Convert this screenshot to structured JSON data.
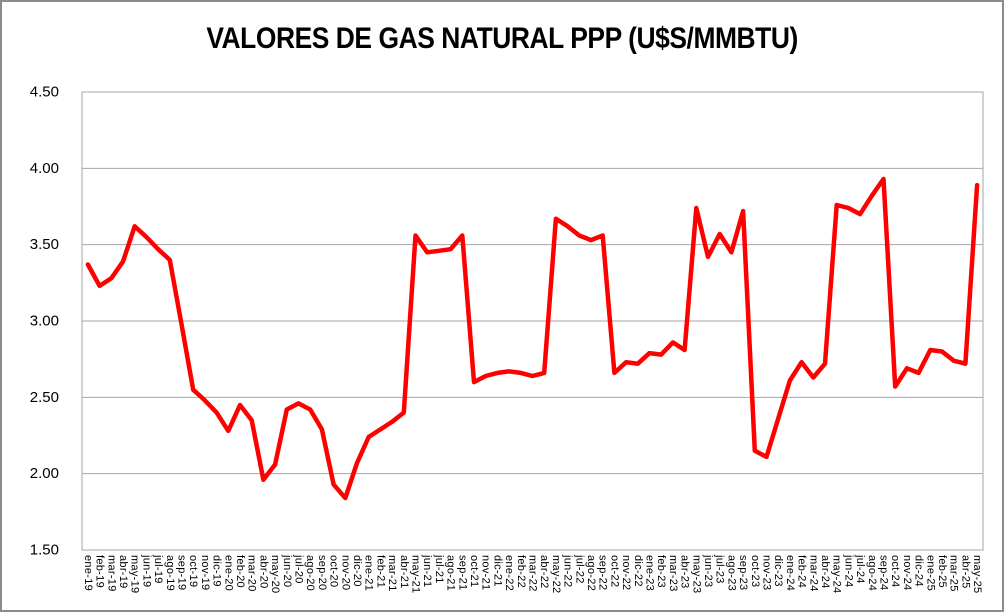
{
  "chart_data": {
    "type": "line",
    "title": "VALORES DE GAS NATURAL PPP (U$S/MMBTU)",
    "xlabel": "",
    "ylabel": "",
    "ylim": [
      1.5,
      4.5
    ],
    "y_ticks": [
      "1.50",
      "2.00",
      "2.50",
      "3.00",
      "3.50",
      "4.00",
      "4.50"
    ],
    "grid": true,
    "legend": "none",
    "line_color": "#FF0000",
    "axis_color": "#A6A6A6",
    "categories": [
      "ene-19",
      "feb-19",
      "mar-19",
      "abr-19",
      "may-19",
      "jun-19",
      "jul-19",
      "ago-19",
      "sep-19",
      "oct-19",
      "nov-19",
      "dic-19",
      "ene-20",
      "feb-20",
      "mar-20",
      "abr-20",
      "may-20",
      "jun-20",
      "jul-20",
      "ago-20",
      "sep-20",
      "oct-20",
      "nov-20",
      "dic-20",
      "ene-21",
      "feb-21",
      "mar-21",
      "abr-21",
      "may-21",
      "jun-21",
      "jul-21",
      "ago-21",
      "sep-21",
      "oct-21",
      "nov-21",
      "dic-21",
      "ene-22",
      "feb-22",
      "mar-22",
      "abr-22",
      "may-22",
      "jun-22",
      "jul-22",
      "ago-22",
      "sep-22",
      "oct-22",
      "nov-22",
      "dic-22",
      "ene-23",
      "feb-23",
      "mar-23",
      "abr-23",
      "may-23",
      "jun-23",
      "jul-23",
      "ago-23",
      "sep-23",
      "oct-23",
      "nov-23",
      "dic-23",
      "ene-24",
      "feb-24",
      "mar-24",
      "abr-24",
      "may-24",
      "jun-24",
      "jul-24",
      "ago-24",
      "sep-24",
      "oct-24",
      "nov-24",
      "dic-24",
      "ene-25",
      "feb-25",
      "mar-25",
      "abr-25",
      "may-25"
    ],
    "series": [
      {
        "name": "Valores de gas natural PPP (U$S/MMBTU)",
        "values": [
          3.37,
          3.23,
          3.28,
          3.39,
          3.62,
          3.55,
          3.47,
          3.4,
          2.98,
          2.55,
          2.48,
          2.4,
          2.28,
          2.45,
          2.35,
          1.96,
          2.06,
          2.42,
          2.46,
          2.42,
          2.29,
          1.93,
          1.84,
          2.07,
          2.24,
          2.29,
          2.34,
          2.4,
          3.56,
          3.45,
          3.46,
          3.47,
          3.56,
          2.6,
          2.64,
          2.66,
          2.67,
          2.66,
          2.64,
          2.66,
          3.67,
          3.62,
          3.56,
          3.53,
          3.56,
          2.66,
          2.73,
          2.72,
          2.79,
          2.78,
          2.86,
          2.81,
          3.74,
          3.42,
          3.57,
          3.45,
          3.72,
          2.15,
          2.11,
          2.36,
          2.61,
          2.73,
          2.63,
          2.72,
          3.76,
          3.74,
          3.7,
          3.82,
          3.93,
          2.57,
          2.69,
          2.66,
          2.81,
          2.8,
          2.74,
          2.72,
          3.89
        ]
      }
    ]
  }
}
